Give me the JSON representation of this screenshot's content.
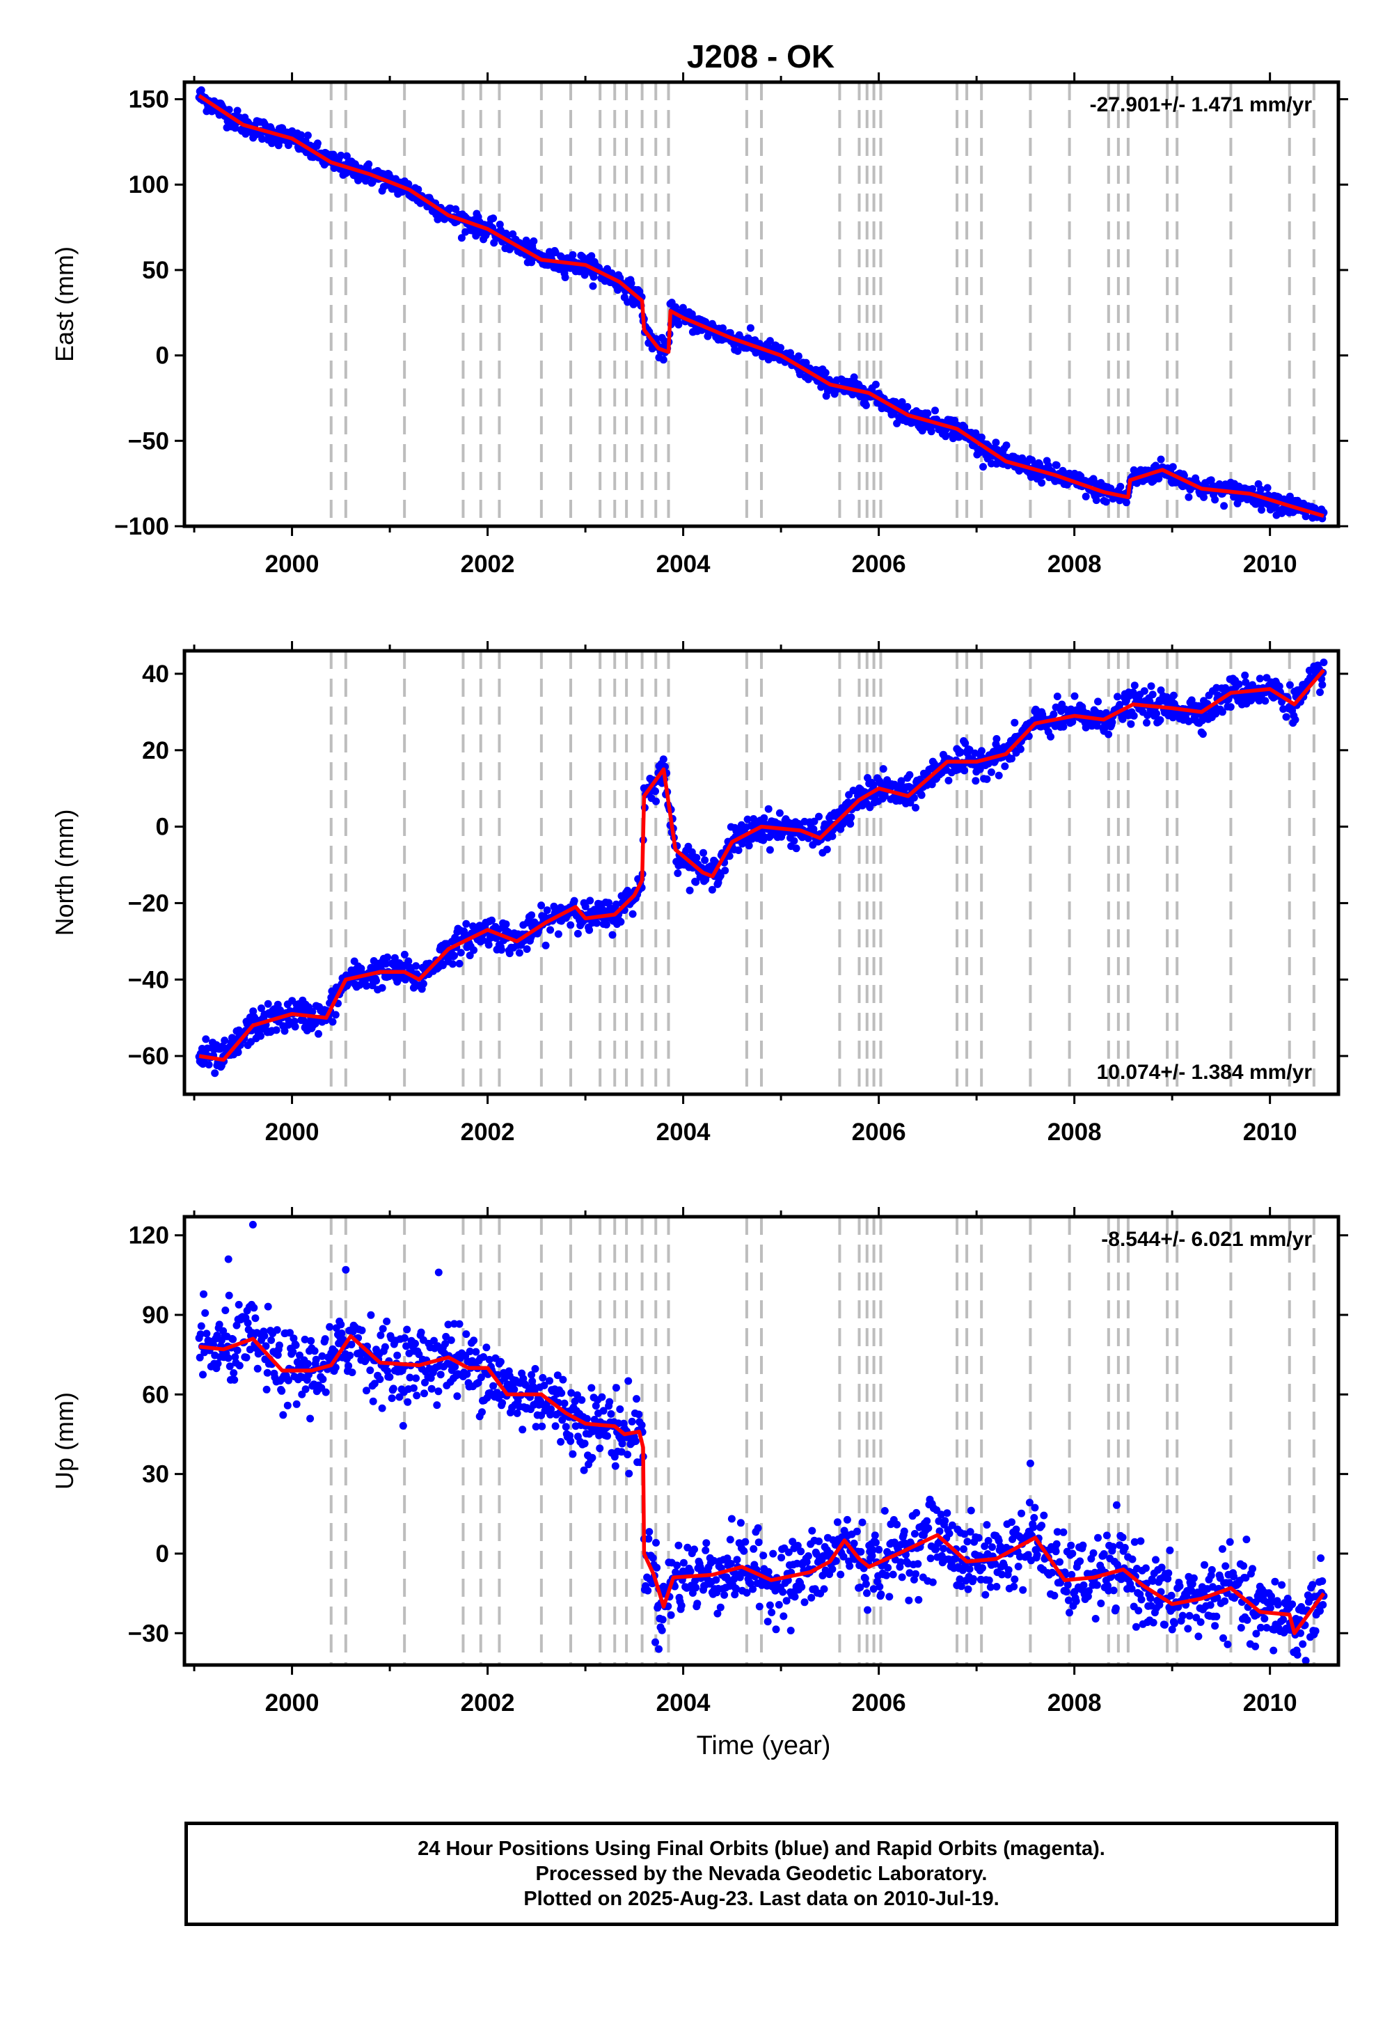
{
  "title": "J208 - OK",
  "colors": {
    "points": "#0000ff",
    "model": "#ff0000",
    "event_lines": "#bdbdbd",
    "frame": "#000000"
  },
  "chart_data": [
    {
      "type": "scatter",
      "name": "east",
      "ylabel": "East (mm)",
      "xlabel": "",
      "xlim": [
        1998.9,
        2010.7
      ],
      "ylim": [
        -100,
        160
      ],
      "xticks": [
        2000,
        2002,
        2004,
        2006,
        2008,
        2010
      ],
      "yticks": [
        -100,
        -50,
        0,
        50,
        100,
        150
      ],
      "ytick_labels": [
        "−100",
        "−50",
        "0",
        "50",
        "100",
        "150"
      ],
      "rate_label": "-27.901+/- 1.471 mm/yr",
      "rate_position": "top-right",
      "scatter_std": 3,
      "model": [
        [
          1999.05,
          152
        ],
        [
          1999.5,
          135
        ],
        [
          2000.0,
          127
        ],
        [
          2000.4,
          113
        ],
        [
          2000.8,
          106
        ],
        [
          2001.2,
          97
        ],
        [
          2001.6,
          82
        ],
        [
          2002.0,
          74
        ],
        [
          2002.55,
          56
        ],
        [
          2003.0,
          53
        ],
        [
          2003.35,
          43
        ],
        [
          2003.58,
          32
        ],
        [
          2003.6,
          15
        ],
        [
          2003.75,
          4
        ],
        [
          2003.85,
          2
        ],
        [
          2003.87,
          26
        ],
        [
          2004.0,
          22
        ],
        [
          2004.5,
          10
        ],
        [
          2005.0,
          0
        ],
        [
          2005.5,
          -17
        ],
        [
          2005.9,
          -22
        ],
        [
          2006.3,
          -35
        ],
        [
          2006.8,
          -43
        ],
        [
          2007.3,
          -62
        ],
        [
          2007.8,
          -70
        ],
        [
          2008.3,
          -80
        ],
        [
          2008.55,
          -83
        ],
        [
          2008.57,
          -73
        ],
        [
          2008.9,
          -67
        ],
        [
          2009.3,
          -78
        ],
        [
          2009.8,
          -81
        ],
        [
          2010.2,
          -88
        ],
        [
          2010.55,
          -94
        ]
      ],
      "breaks": [
        2003.6,
        2003.87,
        2008.57
      ],
      "outliers": []
    },
    {
      "type": "scatter",
      "name": "north",
      "ylabel": "North (mm)",
      "xlabel": "",
      "xlim": [
        1998.9,
        2010.7
      ],
      "ylim": [
        -70,
        46
      ],
      "xticks": [
        2000,
        2002,
        2004,
        2006,
        2008,
        2010
      ],
      "yticks": [
        -60,
        -40,
        -20,
        0,
        20,
        40
      ],
      "ytick_labels": [
        "−60",
        "−40",
        "−20",
        "0",
        "20",
        "40"
      ],
      "rate_label": "10.074+/- 1.384 mm/yr",
      "rate_position": "bottom-right",
      "scatter_std": 2,
      "model": [
        [
          1999.05,
          -60
        ],
        [
          1999.3,
          -61
        ],
        [
          1999.6,
          -52
        ],
        [
          2000.0,
          -49
        ],
        [
          2000.35,
          -50
        ],
        [
          2000.55,
          -40
        ],
        [
          2000.9,
          -38
        ],
        [
          2001.15,
          -38
        ],
        [
          2001.3,
          -40
        ],
        [
          2001.6,
          -32
        ],
        [
          2002.0,
          -27
        ],
        [
          2002.3,
          -30
        ],
        [
          2002.6,
          -25
        ],
        [
          2002.9,
          -21
        ],
        [
          2003.0,
          -24
        ],
        [
          2003.3,
          -23
        ],
        [
          2003.5,
          -18
        ],
        [
          2003.58,
          -14
        ],
        [
          2003.6,
          8
        ],
        [
          2003.8,
          15
        ],
        [
          2003.92,
          -6
        ],
        [
          2004.2,
          -12
        ],
        [
          2004.3,
          -13
        ],
        [
          2004.5,
          -4
        ],
        [
          2004.8,
          0
        ],
        [
          2005.2,
          -1
        ],
        [
          2005.4,
          -3
        ],
        [
          2005.8,
          7
        ],
        [
          2006.0,
          10
        ],
        [
          2006.3,
          8
        ],
        [
          2006.7,
          17
        ],
        [
          2007.0,
          17
        ],
        [
          2007.3,
          19
        ],
        [
          2007.6,
          27
        ],
        [
          2008.0,
          29
        ],
        [
          2008.3,
          28
        ],
        [
          2008.6,
          32
        ],
        [
          2009.0,
          31
        ],
        [
          2009.3,
          30
        ],
        [
          2009.6,
          35
        ],
        [
          2010.0,
          36
        ],
        [
          2010.25,
          32
        ],
        [
          2010.55,
          41
        ]
      ],
      "breaks": [
        2003.6
      ],
      "outliers": []
    },
    {
      "type": "scatter",
      "name": "up",
      "ylabel": "Up (mm)",
      "xlabel": "Time (year)",
      "xlim": [
        1998.9,
        2010.7
      ],
      "ylim": [
        -42,
        127
      ],
      "xticks": [
        2000,
        2002,
        2004,
        2006,
        2008,
        2010
      ],
      "yticks": [
        -30,
        0,
        30,
        60,
        90,
        120
      ],
      "ytick_labels": [
        "−30",
        "0",
        "30",
        "60",
        "90",
        "120"
      ],
      "rate_label": "-8.544+/- 6.021 mm/yr",
      "rate_position": "top-right",
      "scatter_std": 7,
      "model": [
        [
          1999.05,
          78
        ],
        [
          1999.3,
          77
        ],
        [
          1999.6,
          81
        ],
        [
          1999.9,
          69
        ],
        [
          2000.2,
          69
        ],
        [
          2000.4,
          71
        ],
        [
          2000.6,
          82
        ],
        [
          2000.9,
          72
        ],
        [
          2001.3,
          71
        ],
        [
          2001.6,
          74
        ],
        [
          2001.8,
          70
        ],
        [
          2002.0,
          70
        ],
        [
          2002.2,
          60
        ],
        [
          2002.55,
          60
        ],
        [
          2002.8,
          53
        ],
        [
          2003.0,
          49
        ],
        [
          2003.3,
          48
        ],
        [
          2003.4,
          45
        ],
        [
          2003.55,
          46
        ],
        [
          2003.59,
          40
        ],
        [
          2003.6,
          0
        ],
        [
          2003.7,
          -8
        ],
        [
          2003.8,
          -20
        ],
        [
          2003.9,
          -9
        ],
        [
          2004.3,
          -8
        ],
        [
          2004.6,
          -5
        ],
        [
          2004.9,
          -10
        ],
        [
          2005.3,
          -7
        ],
        [
          2005.5,
          -3
        ],
        [
          2005.65,
          5
        ],
        [
          2005.8,
          -2
        ],
        [
          2005.9,
          -5
        ],
        [
          2006.2,
          0
        ],
        [
          2006.6,
          7
        ],
        [
          2006.9,
          -3
        ],
        [
          2007.2,
          -2
        ],
        [
          2007.6,
          6
        ],
        [
          2007.9,
          -10
        ],
        [
          2008.2,
          -9
        ],
        [
          2008.5,
          -6
        ],
        [
          2008.7,
          -12
        ],
        [
          2009.0,
          -19
        ],
        [
          2009.3,
          -17
        ],
        [
          2009.6,
          -13
        ],
        [
          2009.9,
          -22
        ],
        [
          2010.2,
          -23
        ],
        [
          2010.25,
          -30
        ],
        [
          2010.55,
          -15
        ]
      ],
      "breaks": [
        2003.6
      ],
      "outliers": [
        [
          1999.6,
          124
        ],
        [
          1999.35,
          111
        ],
        [
          2000.55,
          107
        ],
        [
          2001.5,
          106
        ],
        [
          2007.55,
          34
        ],
        [
          2003.75,
          -36
        ],
        [
          2009.85,
          -35
        ],
        [
          2005.1,
          -29
        ]
      ]
    }
  ],
  "event_lines": [
    2000.4,
    2000.55,
    2001.15,
    2001.75,
    2001.93,
    2002.12,
    2002.55,
    2002.85,
    2003.15,
    2003.3,
    2003.42,
    2003.58,
    2003.72,
    2003.85,
    2004.65,
    2004.8,
    2005.6,
    2005.8,
    2005.88,
    2005.95,
    2006.02,
    2006.8,
    2006.9,
    2007.05,
    2007.55,
    2007.95,
    2008.35,
    2008.45,
    2008.55,
    2008.95,
    2009.05,
    2009.6,
    2010.2,
    2010.45
  ],
  "footer": {
    "line1": "24 Hour Positions Using Final Orbits (blue) and Rapid Orbits (magenta).",
    "line2": "Processed by the Nevada Geodetic Laboratory.",
    "line3": "Plotted on 2025-Aug-23. Last data on 2010-Jul-19."
  }
}
